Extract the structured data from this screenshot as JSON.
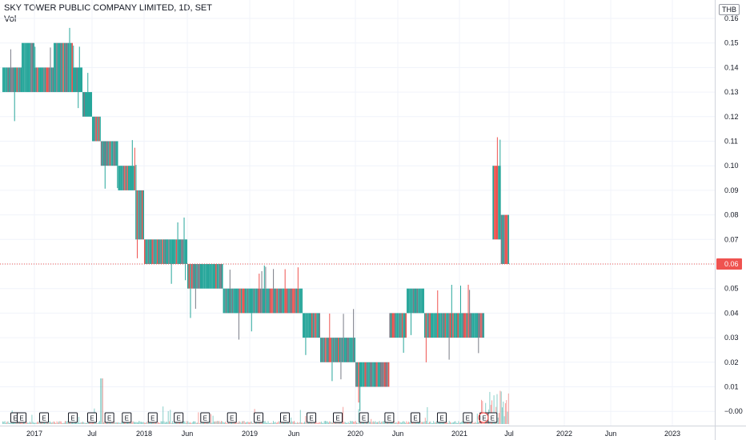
{
  "header": {
    "title": "SKY TOWER PUBLIC COMPANY LIMITED, 1D, SET",
    "volume_label": "Vol"
  },
  "currency": "THB",
  "last_price_label": "0.06",
  "colors": {
    "up": "#26a69a",
    "down": "#ef5350",
    "neutral": "#787b86",
    "grid": "#f0f3fa",
    "axis": "#131722"
  },
  "chart_data": {
    "type": "candlestick",
    "symbol": "SKY TOWER PUBLIC COMPANY LIMITED",
    "interval": "1D",
    "exchange": "SET",
    "ylim": [
      -0.002,
      0.163
    ],
    "y_ticks": [
      0.16,
      0.15,
      0.14,
      0.13,
      0.12,
      0.11,
      0.1,
      0.09,
      0.08,
      0.07,
      0.06,
      0.05,
      0.04,
      0.03,
      0.02,
      0.01,
      0.0
    ],
    "y_tick_labels": [
      "0.16",
      "0.15",
      "0.14",
      "0.13",
      "0.12",
      "0.11",
      "0.10",
      "0.09",
      "0.08",
      "0.07",
      "0.06",
      "0.05",
      "0.04",
      "0.03",
      "0.02",
      "0.01",
      "−0.00"
    ],
    "x_ticks": [
      {
        "date": "2017-01",
        "label": "2017"
      },
      {
        "date": "2017-07",
        "label": "Jul"
      },
      {
        "date": "2018-01",
        "label": "2018"
      },
      {
        "date": "2018-06",
        "label": "Jun"
      },
      {
        "date": "2019-01",
        "label": "2019"
      },
      {
        "date": "2019-06",
        "label": "Jun"
      },
      {
        "date": "2020-01",
        "label": "2020"
      },
      {
        "date": "2020-06",
        "label": "Jun"
      },
      {
        "date": "2021-01",
        "label": "2021"
      },
      {
        "date": "2021-07",
        "label": "Jul"
      },
      {
        "date": "2022-01",
        "label": "2022"
      },
      {
        "date": "2022-06",
        "label": "Jun"
      },
      {
        "date": "2023-01",
        "label": "2023"
      }
    ],
    "last_price": 0.06,
    "price_segments": [
      {
        "start": "2016-08",
        "end": "2016-11",
        "low": 0.13,
        "high": 0.14
      },
      {
        "start": "2016-11",
        "end": "2017-01",
        "low": 0.13,
        "high": 0.15
      },
      {
        "start": "2017-01",
        "end": "2017-03",
        "low": 0.13,
        "high": 0.14
      },
      {
        "start": "2017-03",
        "end": "2017-05",
        "low": 0.13,
        "high": 0.15
      },
      {
        "start": "2017-05",
        "end": "2017-06",
        "low": 0.13,
        "high": 0.14
      },
      {
        "start": "2017-06",
        "end": "2017-07",
        "low": 0.12,
        "high": 0.13
      },
      {
        "start": "2017-07",
        "end": "2017-08",
        "low": 0.11,
        "high": 0.12
      },
      {
        "start": "2017-08",
        "end": "2017-10",
        "low": 0.1,
        "high": 0.11
      },
      {
        "start": "2017-10",
        "end": "2017-12",
        "low": 0.09,
        "high": 0.1
      },
      {
        "start": "2017-12",
        "end": "2018-01",
        "low": 0.07,
        "high": 0.09
      },
      {
        "start": "2018-01",
        "end": "2018-06",
        "low": 0.06,
        "high": 0.07
      },
      {
        "start": "2018-06",
        "end": "2018-10",
        "low": 0.05,
        "high": 0.06
      },
      {
        "start": "2018-10",
        "end": "2019-02",
        "low": 0.04,
        "high": 0.05
      },
      {
        "start": "2019-02",
        "end": "2019-07",
        "low": 0.04,
        "high": 0.05
      },
      {
        "start": "2019-07",
        "end": "2019-09",
        "low": 0.03,
        "high": 0.04
      },
      {
        "start": "2019-09",
        "end": "2020-01",
        "low": 0.02,
        "high": 0.03
      },
      {
        "start": "2020-01",
        "end": "2020-03",
        "low": 0.01,
        "high": 0.02
      },
      {
        "start": "2020-03",
        "end": "2020-05",
        "low": 0.01,
        "high": 0.02
      },
      {
        "start": "2020-05",
        "end": "2020-07",
        "low": 0.03,
        "high": 0.04
      },
      {
        "start": "2020-07",
        "end": "2020-09",
        "low": 0.04,
        "high": 0.05
      },
      {
        "start": "2020-09",
        "end": "2021-04",
        "low": 0.03,
        "high": 0.04
      },
      {
        "start": "2021-05",
        "end": "2021-06",
        "low": 0.07,
        "high": 0.1
      },
      {
        "start": "2021-06",
        "end": "2021-07",
        "low": 0.06,
        "high": 0.08
      }
    ],
    "earnings_markers": [
      "2016-10",
      "2016-11",
      "2017-02",
      "2017-05",
      "2017-07",
      "2017-09",
      "2017-11",
      "2018-02",
      "2018-05",
      "2018-08",
      "2018-11",
      "2019-02",
      "2019-05",
      "2019-08",
      "2019-11",
      "2020-02",
      "2020-05",
      "2020-08",
      "2020-11",
      "2021-02",
      "2021-04",
      "2021-05"
    ],
    "dividend_marker_date": "2021-04"
  }
}
